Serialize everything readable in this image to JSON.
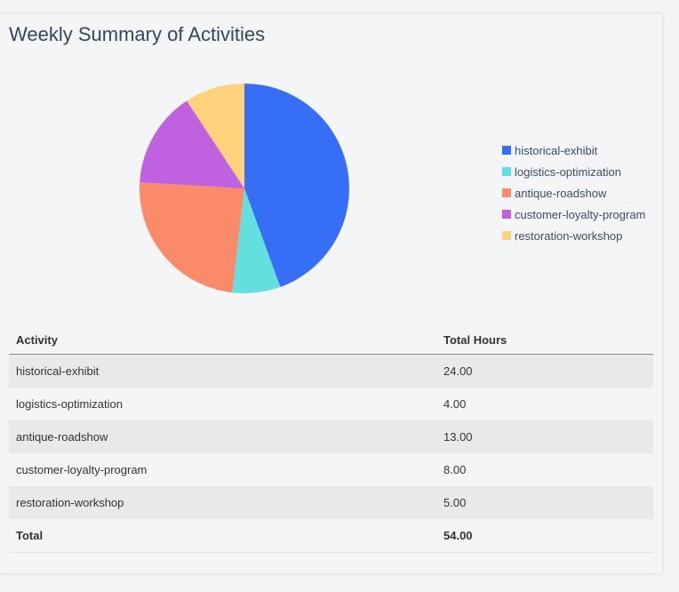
{
  "chart_data": {
    "type": "pie",
    "title": "Weekly Summary of Activities",
    "categories": [
      "historical-exhibit",
      "logistics-optimization",
      "antique-roadshow",
      "customer-loyalty-program",
      "restoration-workshop"
    ],
    "values": [
      24,
      4,
      13,
      8,
      5
    ],
    "colors": [
      "#366ef5",
      "#63dfe0",
      "#fb8a6b",
      "#c062e0",
      "#fed27c"
    ],
    "legend_placement": "right",
    "direction": "clockwise from top"
  },
  "table": {
    "headers": [
      "Activity",
      "Total Hours"
    ],
    "rows": [
      [
        "historical-exhibit",
        "24.00"
      ],
      [
        "logistics-optimization",
        "4.00"
      ],
      [
        "antique-roadshow",
        "13.00"
      ],
      [
        "customer-loyalty-program",
        "8.00"
      ],
      [
        "restoration-workshop",
        "5.00"
      ]
    ],
    "total": [
      "Total",
      "54.00"
    ]
  }
}
